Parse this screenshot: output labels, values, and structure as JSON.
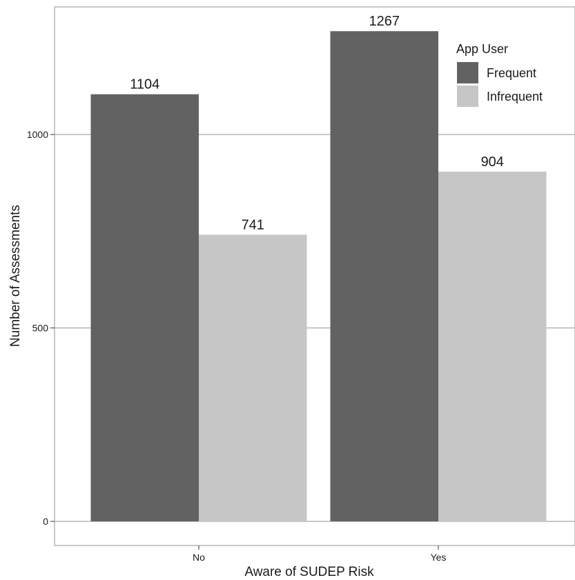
{
  "chart_data": {
    "type": "bar",
    "title": "",
    "xlabel": "Aware of SUDEP Risk",
    "ylabel": "Number of Assessments",
    "categories": [
      "No",
      "Yes"
    ],
    "series": [
      {
        "name": "Frequent",
        "values": [
          1104,
          1267
        ],
        "color": "#626262"
      },
      {
        "name": "Infrequent",
        "values": [
          741,
          904
        ],
        "color": "#c6c6c6"
      }
    ],
    "ylim": [
      -62,
      1320
    ],
    "yticks": [
      0,
      500,
      1000
    ],
    "grid": "horizontal major lines",
    "legend": {
      "title": "App User",
      "placement": "top-right (inside plot)"
    },
    "data_labels": true
  },
  "colors": {
    "gridline": "#b5b5b5",
    "panel_border": "#b5b5b5",
    "text": "#1a1a1a"
  }
}
